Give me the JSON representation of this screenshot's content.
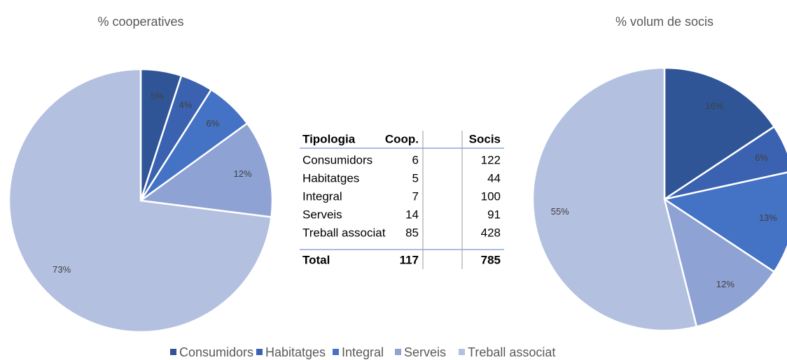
{
  "chart_data": [
    {
      "type": "pie",
      "title": "% cooperatives",
      "categories": [
        "Consumidors",
        "Habitatges",
        "Integral",
        "Serveis",
        "Treball associat"
      ],
      "values": [
        5,
        4,
        6,
        12,
        73
      ],
      "value_labels": [
        "5%",
        "4%",
        "6%",
        "12%",
        "73%"
      ],
      "colors": [
        "#2f5597",
        "#3a62b0",
        "#4472c4",
        "#8fa2d4",
        "#b4c0e0"
      ]
    },
    {
      "type": "pie",
      "title": "% volum de socis",
      "categories": [
        "Consumidors",
        "Habitatges",
        "Integral",
        "Serveis",
        "Treball associat"
      ],
      "values": [
        16,
        6,
        13,
        12,
        55
      ],
      "value_labels": [
        "16%",
        "6%",
        "13%",
        "12%",
        "55%"
      ],
      "colors": [
        "#2f5597",
        "#3a62b0",
        "#4472c4",
        "#8fa2d4",
        "#b4c0e0"
      ]
    }
  ],
  "table": {
    "header": [
      "Tipologia",
      "Coop.",
      "Socis"
    ],
    "rows": [
      [
        "Consumidors",
        6,
        122
      ],
      [
        "Habitatges",
        5,
        44
      ],
      [
        "Integral",
        7,
        100
      ],
      [
        "Serveis",
        14,
        91
      ],
      [
        "Treball associat",
        85,
        428
      ]
    ],
    "total": [
      "Total",
      117,
      785
    ]
  }
}
